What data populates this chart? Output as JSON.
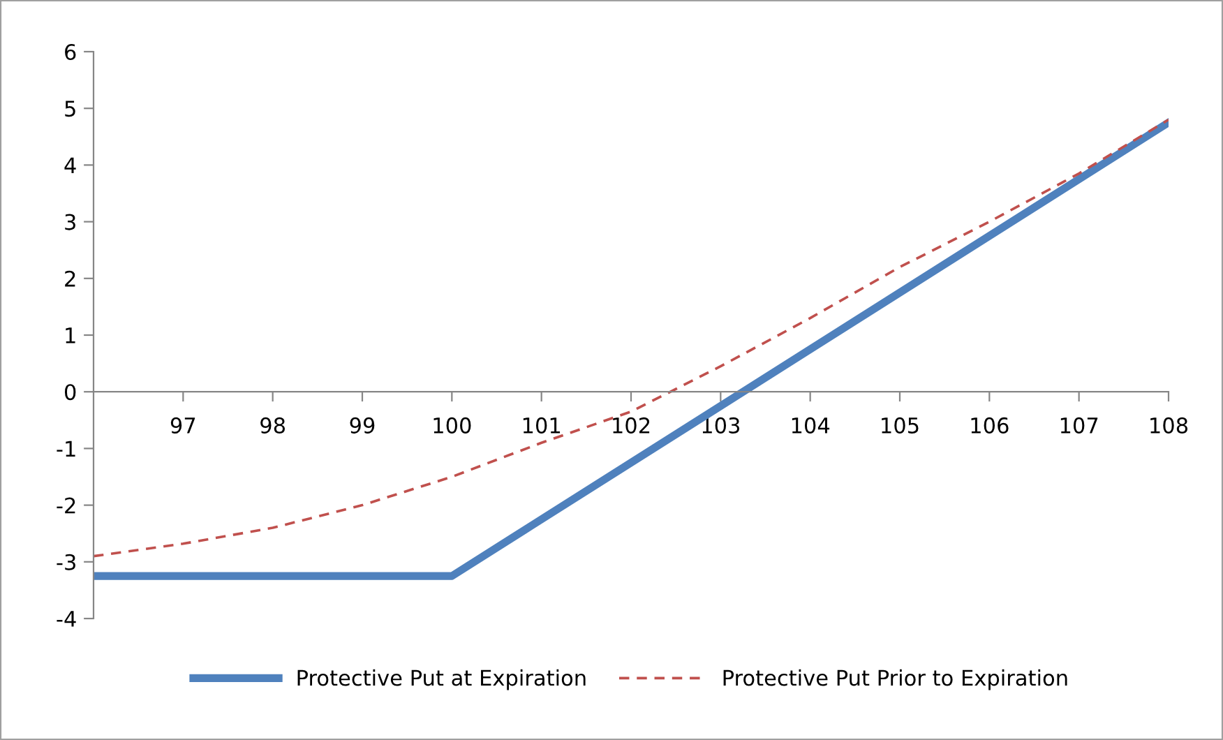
{
  "chart_data": {
    "type": "line",
    "xlim": [
      96,
      108
    ],
    "ylim": [
      -4,
      6
    ],
    "xticks": [
      97,
      98,
      99,
      100,
      101,
      102,
      103,
      104,
      105,
      106,
      107,
      108
    ],
    "yticks": [
      -4,
      -3,
      -2,
      -1,
      0,
      1,
      2,
      3,
      4,
      5,
      6
    ],
    "grid": false,
    "legend": "bottom",
    "marker": "none",
    "series": [
      {
        "name": "Protective Put at Expiration",
        "color": "#4f81bd",
        "line_style": "solid",
        "x": [
          96,
          100,
          108
        ],
        "values": [
          -3.25,
          -3.25,
          4.75
        ]
      },
      {
        "name": "Protective Put Prior to Expiration",
        "color": "#c0504d",
        "line_style": "dashed",
        "x": [
          96,
          97,
          98,
          99,
          100,
          101,
          102,
          103,
          104,
          105,
          106,
          107,
          108
        ],
        "values": [
          -2.9,
          -2.68,
          -2.4,
          -2.0,
          -1.5,
          -0.9,
          -0.35,
          0.45,
          1.3,
          2.2,
          3.0,
          3.85,
          4.8
        ]
      }
    ]
  }
}
